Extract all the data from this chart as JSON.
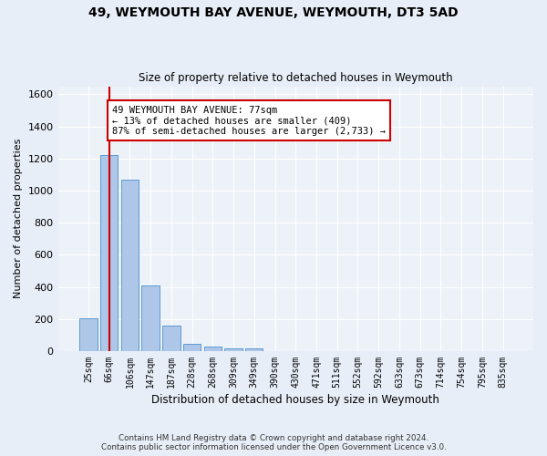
{
  "title1": "49, WEYMOUTH BAY AVENUE, WEYMOUTH, DT3 5AD",
  "title2": "Size of property relative to detached houses in Weymouth",
  "xlabel": "Distribution of detached houses by size in Weymouth",
  "ylabel": "Number of detached properties",
  "categories": [
    "25sqm",
    "66sqm",
    "106sqm",
    "147sqm",
    "187sqm",
    "228sqm",
    "268sqm",
    "309sqm",
    "349sqm",
    "390sqm",
    "430sqm",
    "471sqm",
    "511sqm",
    "552sqm",
    "592sqm",
    "633sqm",
    "673sqm",
    "714sqm",
    "754sqm",
    "795sqm",
    "835sqm"
  ],
  "bar_values": [
    205,
    1220,
    1070,
    410,
    160,
    45,
    27,
    18,
    15,
    0,
    0,
    0,
    0,
    0,
    0,
    0,
    0,
    0,
    0,
    0,
    0
  ],
  "bar_color": "#aec6e8",
  "bar_edge_color": "#5b9bd5",
  "vline_x": 1,
  "vline_color": "#cc0000",
  "ylim": [
    0,
    1650
  ],
  "yticks": [
    0,
    200,
    400,
    600,
    800,
    1000,
    1200,
    1400,
    1600
  ],
  "annotation_title": "49 WEYMOUTH BAY AVENUE: 77sqm",
  "annotation_line1": "← 13% of detached houses are smaller (409)",
  "annotation_line2": "87% of semi-detached houses are larger (2,733) →",
  "annotation_box_color": "#cc0000",
  "footer1": "Contains HM Land Registry data © Crown copyright and database right 2024.",
  "footer2": "Contains public sector information licensed under the Open Government Licence v3.0.",
  "bg_color": "#e8eef7",
  "plot_bg_color": "#edf1f8",
  "grid_color": "#ffffff"
}
